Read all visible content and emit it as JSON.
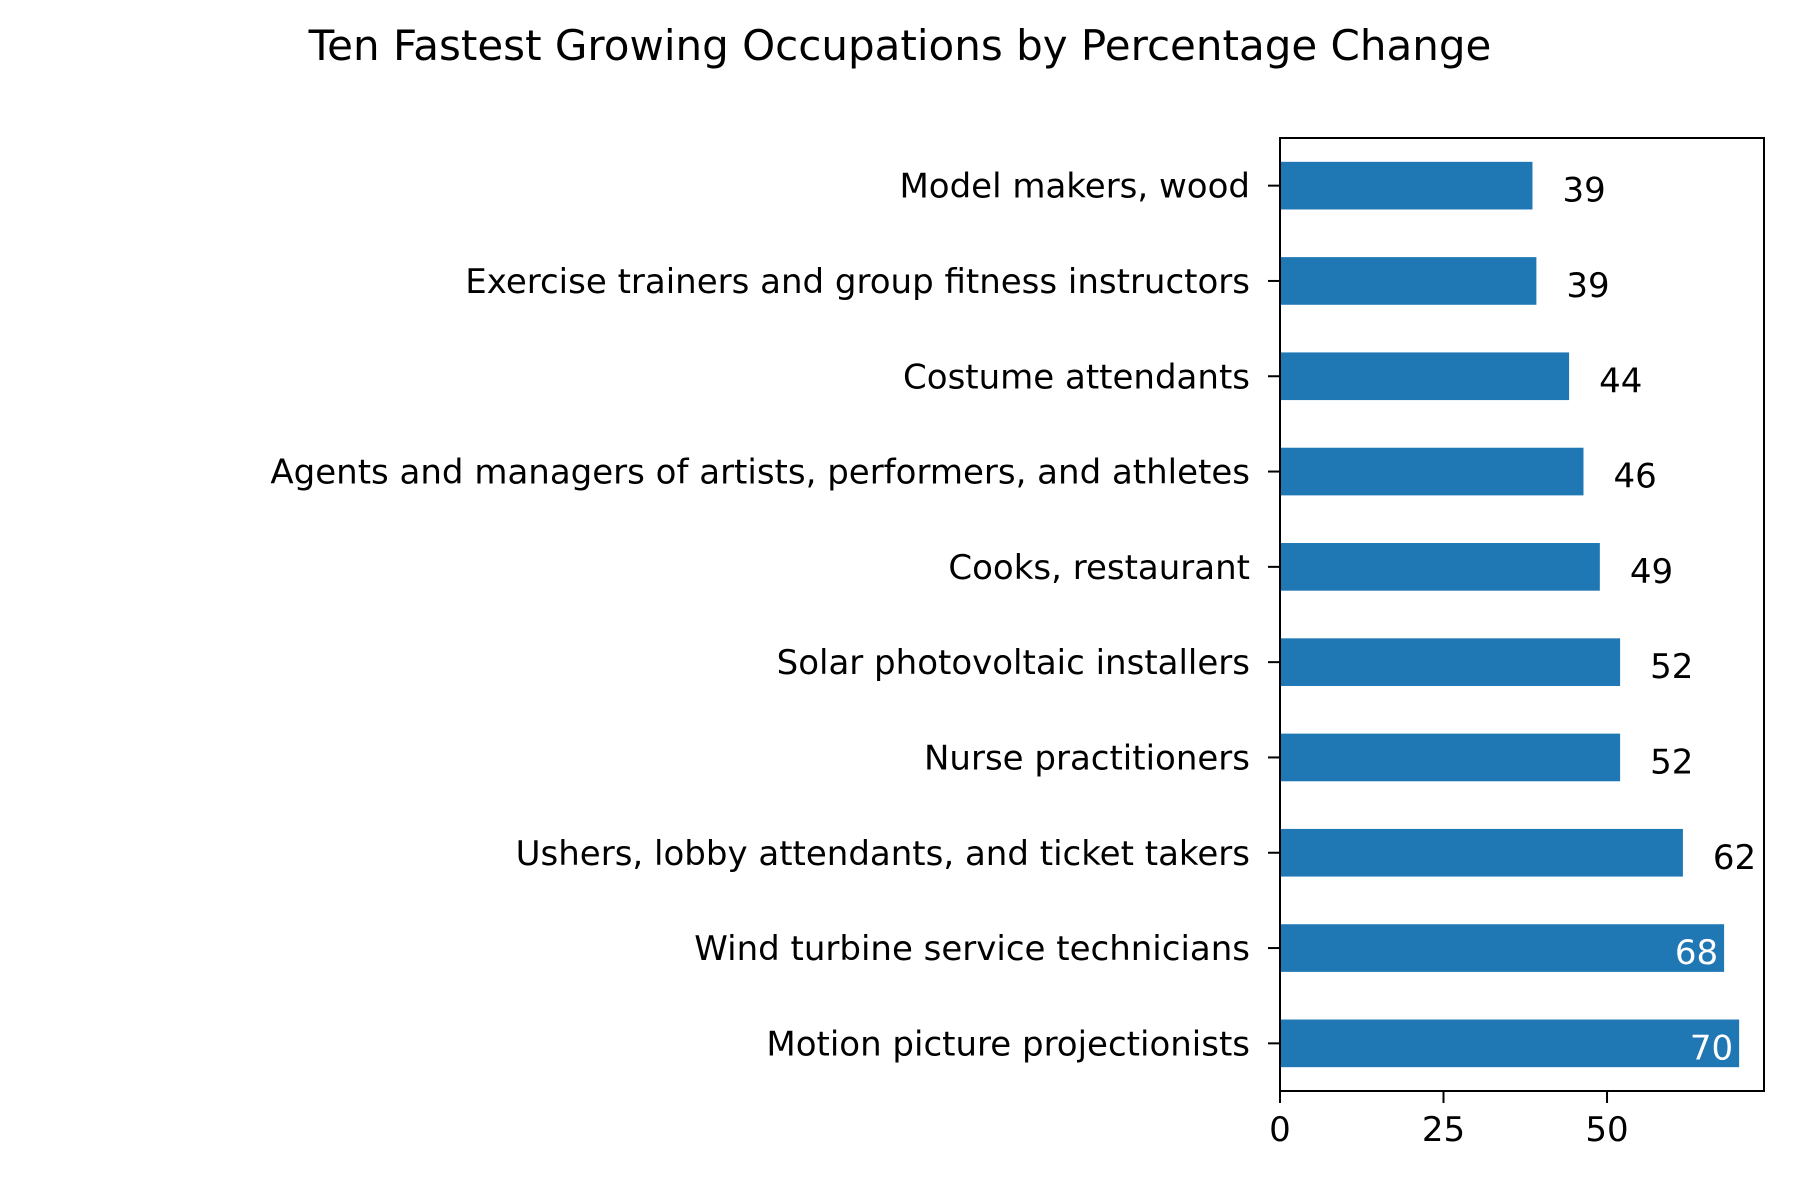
{
  "chart_data": {
    "type": "bar",
    "orientation": "horizontal",
    "title": "Ten Fastest Growing Occupations by Percentage Change",
    "xlabel": "",
    "ylabel": "",
    "categories": [
      "Model makers, wood",
      "Exercise trainers and group fitness instructors",
      "Costume attendants",
      "Agents and managers of artists, performers, and athletes",
      "Cooks, restaurant",
      "Solar photovoltaic installers",
      "Nurse practitioners",
      "Ushers, lobby attendants, and ticket takers",
      "Wind turbine service technicians",
      "Motion picture projectionists"
    ],
    "values": [
      38.6,
      39.2,
      44.2,
      46.4,
      48.9,
      52.0,
      52.0,
      61.6,
      67.9,
      70.2
    ],
    "data_labels": [
      "39",
      "39",
      "44",
      "46",
      "49",
      "52",
      "52",
      "62",
      "68",
      "70"
    ],
    "xlim": [
      0,
      74
    ],
    "xticks": [
      0,
      25,
      50
    ],
    "xtick_labels": [
      "0",
      "25",
      "50"
    ],
    "grid": false,
    "legend": "none",
    "bar_color": "#1f77b4",
    "label_color_outside": "#000000",
    "label_color_inside": "#ffffff"
  }
}
